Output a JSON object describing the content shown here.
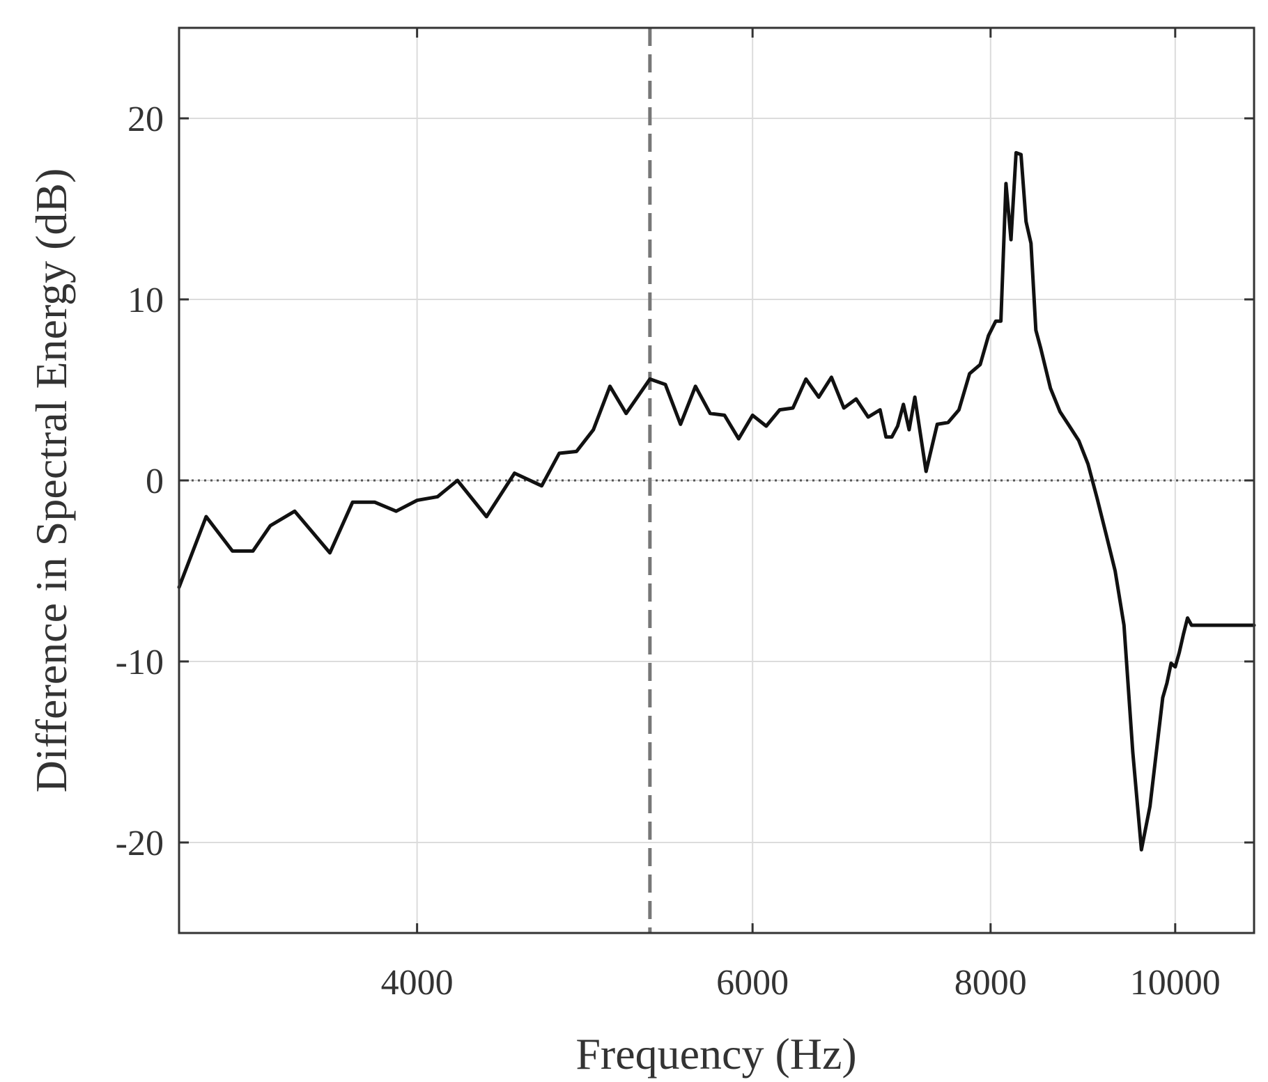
{
  "chart_data": {
    "type": "line",
    "title": "",
    "xlabel": "Frequency (Hz)",
    "ylabel": "Difference in Spectral Energy (dB)",
    "x_scale": "log",
    "xlim": [
      3000,
      11000
    ],
    "ylim": [
      -25,
      25
    ],
    "xticks": [
      4000,
      6000,
      8000,
      10000
    ],
    "xtick_labels": [
      "4000",
      "6000",
      "8000",
      "10000"
    ],
    "yticks": [
      20,
      10,
      0,
      -10,
      -20
    ],
    "ytick_labels": [
      "20",
      "10",
      "0",
      "-10",
      "-20"
    ],
    "grid": true,
    "reference_lines": [
      {
        "orientation": "horizontal",
        "value": 0,
        "style": "dotted"
      },
      {
        "orientation": "vertical",
        "value": 5300,
        "style": "dashed"
      }
    ],
    "series": [
      {
        "color": "#111111",
        "x": [
          3000,
          3100,
          3200,
          3280,
          3350,
          3450,
          3600,
          3700,
          3800,
          3900,
          4000,
          4100,
          4200,
          4350,
          4500,
          4650,
          4750,
          4850,
          4950,
          5050,
          5150,
          5300,
          5400,
          5500,
          5600,
          5700,
          5800,
          5900,
          6000,
          6100,
          6200,
          6300,
          6400,
          6500,
          6600,
          6700,
          6800,
          6900,
          7000,
          7050,
          7100,
          7150,
          7200,
          7250,
          7300,
          7400,
          7500,
          7600,
          7700,
          7800,
          7900,
          7980,
          8050,
          8100,
          8150,
          8200,
          8250,
          8300,
          8350,
          8400,
          8450,
          8500,
          8600,
          8700,
          8800,
          8900,
          9000,
          9100,
          9200,
          9300,
          9400,
          9500,
          9600,
          9700,
          9800,
          9850,
          9900,
          9950,
          10000,
          10050,
          10100,
          10150,
          10200,
          10300,
          10400,
          10450,
          10500,
          10600,
          10700,
          10800,
          10900,
          11000
        ],
        "values": [
          -5.9,
          -2.0,
          -3.9,
          -3.9,
          -2.5,
          -1.7,
          -4.0,
          -1.2,
          -1.2,
          -1.7,
          -1.1,
          -0.9,
          0.0,
          -2.0,
          0.4,
          -0.3,
          1.5,
          1.6,
          2.8,
          5.2,
          3.7,
          5.6,
          5.3,
          3.1,
          5.2,
          3.7,
          3.6,
          2.3,
          3.6,
          3.0,
          3.9,
          4.0,
          5.6,
          4.6,
          5.7,
          4.0,
          4.5,
          3.5,
          3.9,
          2.4,
          2.4,
          3.0,
          4.2,
          2.8,
          4.6,
          0.5,
          3.1,
          3.2,
          3.9,
          5.9,
          6.4,
          8.0,
          8.8,
          8.8,
          16.4,
          13.3,
          18.1,
          18.0,
          14.3,
          13.1,
          8.3,
          7.3,
          5.1,
          3.8,
          3.0,
          2.2,
          0.9,
          -1.0,
          -3.0,
          -5.0,
          -8.0,
          -15.0,
          -20.4,
          -18.0,
          -14.0,
          -12.0,
          -11.2,
          -10.1,
          -10.3,
          -9.5,
          -8.5,
          -7.6,
          -8.0,
          -8.0,
          -8.0,
          -8.0,
          -8.0,
          -8.0,
          -8.0,
          -8.0,
          -8.0,
          -8.0
        ]
      }
    ]
  }
}
